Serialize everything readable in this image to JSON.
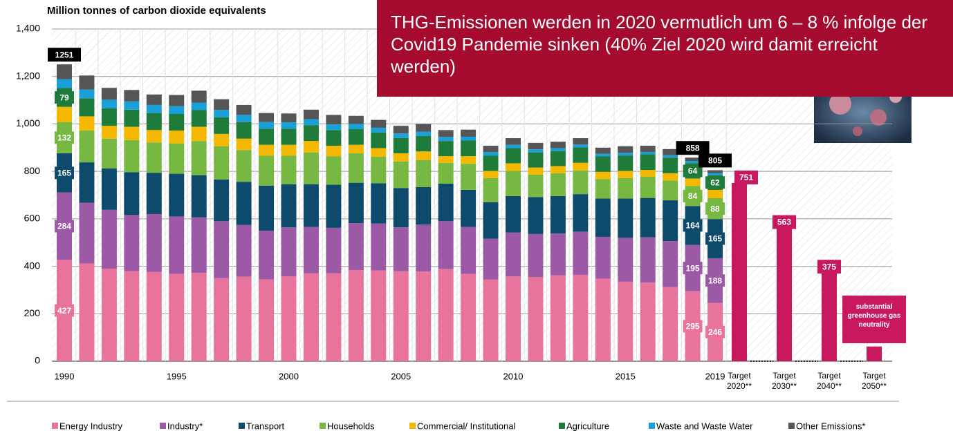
{
  "chart_data": {
    "type": "stacked_bar",
    "title": "Million tonnes of carbon dioxide equivalents",
    "annotation": "THG-Emissionen werden in 2020 vermutlich um 6 – 8 % infolge der Covid19 Pandemie sinken (40% Ziel 2020 wird damit erreicht werden)",
    "note_2050": "substantial greenhouse gas neutrality",
    "categories": [
      "1990",
      null,
      null,
      null,
      null,
      "1995",
      null,
      null,
      null,
      null,
      "2000",
      null,
      null,
      null,
      null,
      "2005",
      null,
      null,
      null,
      null,
      "2010",
      null,
      null,
      null,
      null,
      "2015",
      null,
      null,
      null,
      "2019"
    ],
    "ylim": [
      0,
      1400
    ],
    "yticks": [
      0,
      200,
      400,
      600,
      800,
      {
        "value": 1000,
        "label": "1,000"
      },
      {
        "value": 1200,
        "label": "1,200"
      },
      {
        "value": 1400,
        "label": "1,400"
      }
    ],
    "grid": true,
    "legend": "bottom",
    "series": [
      {
        "name": "Energy Industry",
        "color": "#e8739c",
        "values": [
          427,
          412,
          390,
          380,
          376,
          368,
          372,
          350,
          356,
          345,
          357,
          370,
          371,
          384,
          382,
          379,
          378,
          388,
          368,
          344,
          357,
          354,
          362,
          364,
          348,
          335,
          332,
          312,
          295,
          246
        ]
      },
      {
        "name": "Industry*",
        "color": "#9b59a6",
        "values": [
          284,
          256,
          248,
          236,
          244,
          242,
          234,
          240,
          218,
          205,
          207,
          196,
          191,
          198,
          198,
          185,
          198,
          202,
          198,
          172,
          185,
          182,
          176,
          182,
          176,
          185,
          190,
          194,
          195,
          188
        ]
      },
      {
        "name": "Transport",
        "color": "#0d4a6b",
        "values": [
          165,
          170,
          174,
          180,
          174,
          180,
          178,
          176,
          182,
          190,
          182,
          180,
          182,
          170,
          170,
          166,
          158,
          158,
          156,
          154,
          154,
          156,
          158,
          158,
          162,
          166,
          166,
          172,
          164,
          165
        ]
      },
      {
        "name": "Households",
        "color": "#77b843",
        "values": [
          132,
          134,
          126,
          136,
          128,
          128,
          144,
          140,
          134,
          126,
          120,
          134,
          120,
          124,
          112,
          112,
          114,
          88,
          110,
          102,
          106,
          94,
          96,
          100,
          82,
          86,
          90,
          84,
          84,
          88
        ]
      },
      {
        "name": "Commercial/ Institutional",
        "color": "#f5b800",
        "values": [
          64,
          60,
          54,
          56,
          52,
          54,
          60,
          52,
          48,
          46,
          46,
          48,
          44,
          36,
          36,
          34,
          36,
          28,
          32,
          30,
          32,
          30,
          30,
          32,
          30,
          30,
          28,
          30,
          32,
          35
        ]
      },
      {
        "name": "Agriculture",
        "color": "#1e7b3a",
        "values": [
          79,
          76,
          74,
          72,
          72,
          70,
          70,
          70,
          70,
          68,
          68,
          67,
          66,
          66,
          66,
          65,
          65,
          64,
          66,
          64,
          64,
          64,
          64,
          65,
          65,
          65,
          66,
          66,
          64,
          62
        ]
      },
      {
        "name": "Waste and Waste Water",
        "color": "#1aa0d8",
        "values": [
          38,
          37,
          36,
          35,
          34,
          33,
          32,
          31,
          30,
          28,
          27,
          25,
          24,
          22,
          20,
          19,
          18,
          17,
          16,
          15,
          14,
          13,
          12,
          12,
          11,
          11,
          10,
          10,
          10,
          9
        ]
      },
      {
        "name": "Other Emissions*",
        "color": "#555555",
        "values": [
          62,
          59,
          50,
          48,
          44,
          47,
          50,
          45,
          42,
          38,
          37,
          40,
          40,
          34,
          33,
          32,
          33,
          29,
          30,
          27,
          28,
          27,
          27,
          27,
          26,
          28,
          26,
          26,
          14,
          12
        ]
      }
    ],
    "totals": [
      1251,
      null,
      null,
      null,
      null,
      null,
      null,
      null,
      null,
      null,
      null,
      null,
      null,
      null,
      null,
      null,
      null,
      null,
      null,
      null,
      null,
      null,
      null,
      null,
      null,
      null,
      null,
      null,
      858,
      805
    ],
    "target_categories": [
      "Target 2020**",
      "Target 2030**",
      "Target 2040**",
      "Target 2050**"
    ],
    "target_values": [
      751,
      563,
      375,
      62
    ],
    "target_value_labels": [
      "751",
      "563",
      "375",
      null
    ],
    "target_color": "#c8195e"
  }
}
